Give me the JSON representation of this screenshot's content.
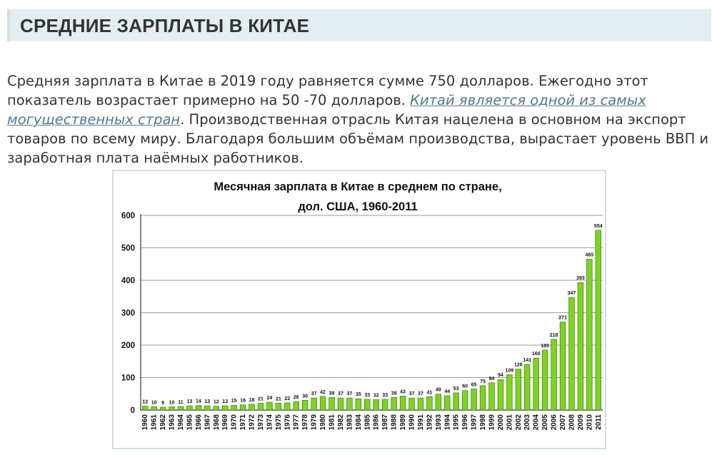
{
  "heading": "СРЕДНИЕ ЗАРПЛАТЫ В КИТАЕ",
  "paragraph": {
    "part1": "Средняя зарплата в Китае в 2019 году равняется сумме 750 долларов. Ежегодно этот показатель возрастает примерно на 50 -70 долларов. ",
    "link": "Китай является одной из самых могущественных стран",
    "part2": ". Производственная отрасль Китая нацелена в основном на экспорт товаров по всему миру. Благодаря большим объёмам производства, вырастает уровень ВВП и заработная плата наёмных работников."
  },
  "colors": {
    "heading_bg": "#e4edf2",
    "link": "#53788f",
    "bar_fill": "#7ed321",
    "bar_stroke": "#3a7a10"
  },
  "chart_data": {
    "type": "bar",
    "title_line1": "Месячная зарплата в Китае в среднем по стране,",
    "title_line2": "дол. США, 1960-2011",
    "categories": [
      "1960",
      "1961",
      "1962",
      "1963",
      "1964",
      "1965",
      "1966",
      "1967",
      "1968",
      "1969",
      "1970",
      "1971",
      "1972",
      "1973",
      "1974",
      "1975",
      "1976",
      "1977",
      "1978",
      "1979",
      "1980",
      "1981",
      "1982",
      "1983",
      "1984",
      "1985",
      "1986",
      "1987",
      "1988",
      "1989",
      "1990",
      "1991",
      "1992",
      "1993",
      "1994",
      "1995",
      "1996",
      "1997",
      "1998",
      "1999",
      "2000",
      "2001",
      "2002",
      "2003",
      "2004",
      "2005",
      "2006",
      "2007",
      "2008",
      "2009",
      "2010",
      "2011"
    ],
    "values": [
      12,
      10,
      9,
      10,
      11,
      13,
      14,
      13,
      12,
      13,
      15,
      16,
      18,
      21,
      24,
      21,
      22,
      26,
      30,
      37,
      42,
      39,
      37,
      37,
      35,
      33,
      32,
      33,
      39,
      43,
      37,
      37,
      41,
      49,
      44,
      53,
      60,
      65,
      75,
      84,
      94,
      109,
      126,
      141,
      160,
      185,
      218,
      271,
      347,
      393,
      465,
      554
    ],
    "ylim": [
      0,
      600
    ],
    "yticks": [
      0,
      100,
      200,
      300,
      400,
      500,
      600
    ],
    "grid": true,
    "legend": "none"
  }
}
